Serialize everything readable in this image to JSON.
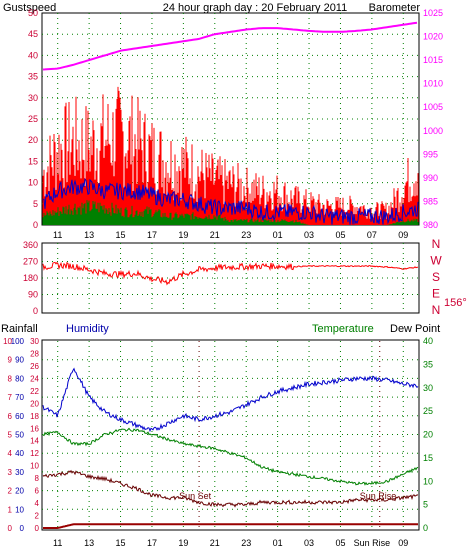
{
  "header": {
    "left_label": "Gustspeed",
    "title": "24 hour graph day : 20 February 2011",
    "right_label": "Barometer"
  },
  "colors": {
    "gust": "#ff0000",
    "wind": "#0000cc",
    "wind_green": "#008000",
    "barometer": "#ff00ff",
    "direction": "#ff0000",
    "humidity": "#0000cc",
    "temperature": "#008000",
    "dewpoint": "#660000",
    "rain": "#990000",
    "axis_left": "#cc0033",
    "axis_green": "#008000",
    "axis_blue": "#0000aa",
    "grid": "#008000"
  },
  "hour_labels": [
    "11",
    "13",
    "15",
    "17",
    "19",
    "21",
    "23",
    "01",
    "03",
    "05",
    "07",
    "09"
  ],
  "bottom_hour_labels": [
    "11",
    "13",
    "15",
    "17",
    "19",
    "21",
    "23",
    "01",
    "03",
    "05",
    "Sun Rise",
    "09"
  ],
  "chart_data": [
    {
      "id": "wind",
      "type": "area",
      "ylabel_left": "Gustspeed",
      "ylabel_right": "Barometer",
      "ylim": [
        0,
        50
      ],
      "yticks": [
        0,
        5,
        10,
        15,
        20,
        25,
        30,
        35,
        40,
        45,
        50
      ],
      "barometer_ylim": [
        980,
        1025
      ],
      "barometer_ticks": [
        980,
        985,
        990,
        995,
        1000,
        1005,
        1010,
        1015,
        1020,
        1025
      ],
      "x": [
        10,
        11,
        12,
        13,
        14,
        15,
        16,
        17,
        18,
        19,
        20,
        21,
        22,
        23,
        24,
        25,
        26,
        27,
        28,
        29,
        30,
        31,
        32,
        33,
        34
      ],
      "gust": [
        13,
        20,
        22,
        21,
        23,
        24,
        22,
        19,
        17,
        16,
        14,
        12,
        11,
        10,
        9,
        9,
        7,
        6,
        5,
        5,
        5,
        4,
        4,
        10,
        16
      ],
      "wind": [
        5,
        8,
        9,
        9,
        8,
        8,
        8,
        7,
        6,
        6,
        5,
        4,
        4,
        4,
        3,
        3,
        3,
        3,
        2,
        2,
        2,
        2,
        2,
        3,
        4
      ],
      "wind_base": [
        2,
        3,
        4,
        4,
        4,
        3,
        3,
        3,
        2,
        2,
        2,
        2,
        1,
        1,
        1,
        1,
        1,
        0,
        0,
        0,
        0,
        0,
        0,
        1,
        1
      ],
      "barometer": [
        1013,
        1013.2,
        1014,
        1015,
        1016,
        1017,
        1017.5,
        1018,
        1018.5,
        1019,
        1019.5,
        1020.5,
        1021,
        1021.5,
        1021.8,
        1021.8,
        1021.5,
        1021.2,
        1021,
        1021,
        1021.2,
        1021.5,
        1022,
        1022.5,
        1023
      ]
    },
    {
      "id": "direction",
      "type": "line",
      "yticks": [
        0,
        90,
        180,
        270,
        360
      ],
      "compass_labels": [
        "N",
        "W",
        "S",
        "E",
        "N"
      ],
      "current_direction": "156°",
      "ylim": [
        0,
        360
      ],
      "x": [
        10,
        11,
        12,
        13,
        14,
        15,
        16,
        17,
        18,
        19,
        20,
        21,
        22,
        23,
        24,
        25,
        26,
        27,
        28,
        29,
        30,
        31,
        32,
        33,
        34
      ],
      "values": [
        240,
        250,
        245,
        225,
        205,
        200,
        205,
        175,
        160,
        200,
        225,
        235,
        240,
        242,
        245,
        245,
        242,
        245,
        245,
        245,
        245,
        245,
        240,
        230,
        240
      ]
    },
    {
      "id": "temp_hum",
      "type": "line",
      "labels": {
        "rainfall": "Rainfall",
        "humidity": "Humidity",
        "temperature": "Temperature",
        "dewpoint": "Dew Point"
      },
      "rain_ticks": [
        0,
        1,
        2,
        3,
        4,
        5,
        6,
        7,
        8,
        9,
        10
      ],
      "humidity_ticks": [
        0,
        10,
        20,
        30,
        40,
        50,
        60,
        70,
        80,
        90,
        100
      ],
      "temp_left_ticks": [
        0,
        2,
        4,
        6,
        8,
        10,
        12,
        14,
        16,
        18,
        20,
        22,
        24,
        26,
        28,
        30
      ],
      "temp_right_ticks": [
        0,
        5,
        10,
        15,
        20,
        25,
        30,
        35,
        40
      ],
      "x": [
        10,
        11,
        12,
        13,
        14,
        15,
        16,
        17,
        18,
        19,
        20,
        21,
        22,
        23,
        24,
        25,
        26,
        27,
        28,
        29,
        30,
        31,
        32,
        33,
        34
      ],
      "humidity": [
        65,
        60,
        86,
        70,
        62,
        58,
        55,
        52,
        56,
        60,
        58,
        60,
        62,
        66,
        70,
        73,
        75,
        77,
        78,
        79,
        80,
        80,
        79,
        77,
        76
      ],
      "temperature": [
        20,
        20.5,
        18,
        18,
        20,
        21,
        21,
        20,
        19,
        18,
        17.5,
        17,
        16,
        15,
        13,
        12,
        11.5,
        11,
        10.5,
        10,
        9.5,
        9.5,
        10,
        11.5,
        13
      ],
      "dewpoint": [
        11,
        11.5,
        12,
        11,
        10.5,
        9.5,
        8.5,
        7,
        6.5,
        6.5,
        5.5,
        5,
        5,
        5,
        5.5,
        5.5,
        5.5,
        5.5,
        5.5,
        5.5,
        6,
        6,
        6,
        6.5,
        6.8
      ],
      "rainfall": [
        0,
        0,
        0.2,
        0.2,
        0.2,
        0.2,
        0.2,
        0.2,
        0.2,
        0.2,
        0.2,
        0.2,
        0.2,
        0.2,
        0.2,
        0.2,
        0.2,
        0.2,
        0.2,
        0.2,
        0.2,
        0.2,
        0.2,
        0.2,
        0.2
      ],
      "annotations": [
        "Sun Set",
        "Sun Rise"
      ]
    }
  ]
}
